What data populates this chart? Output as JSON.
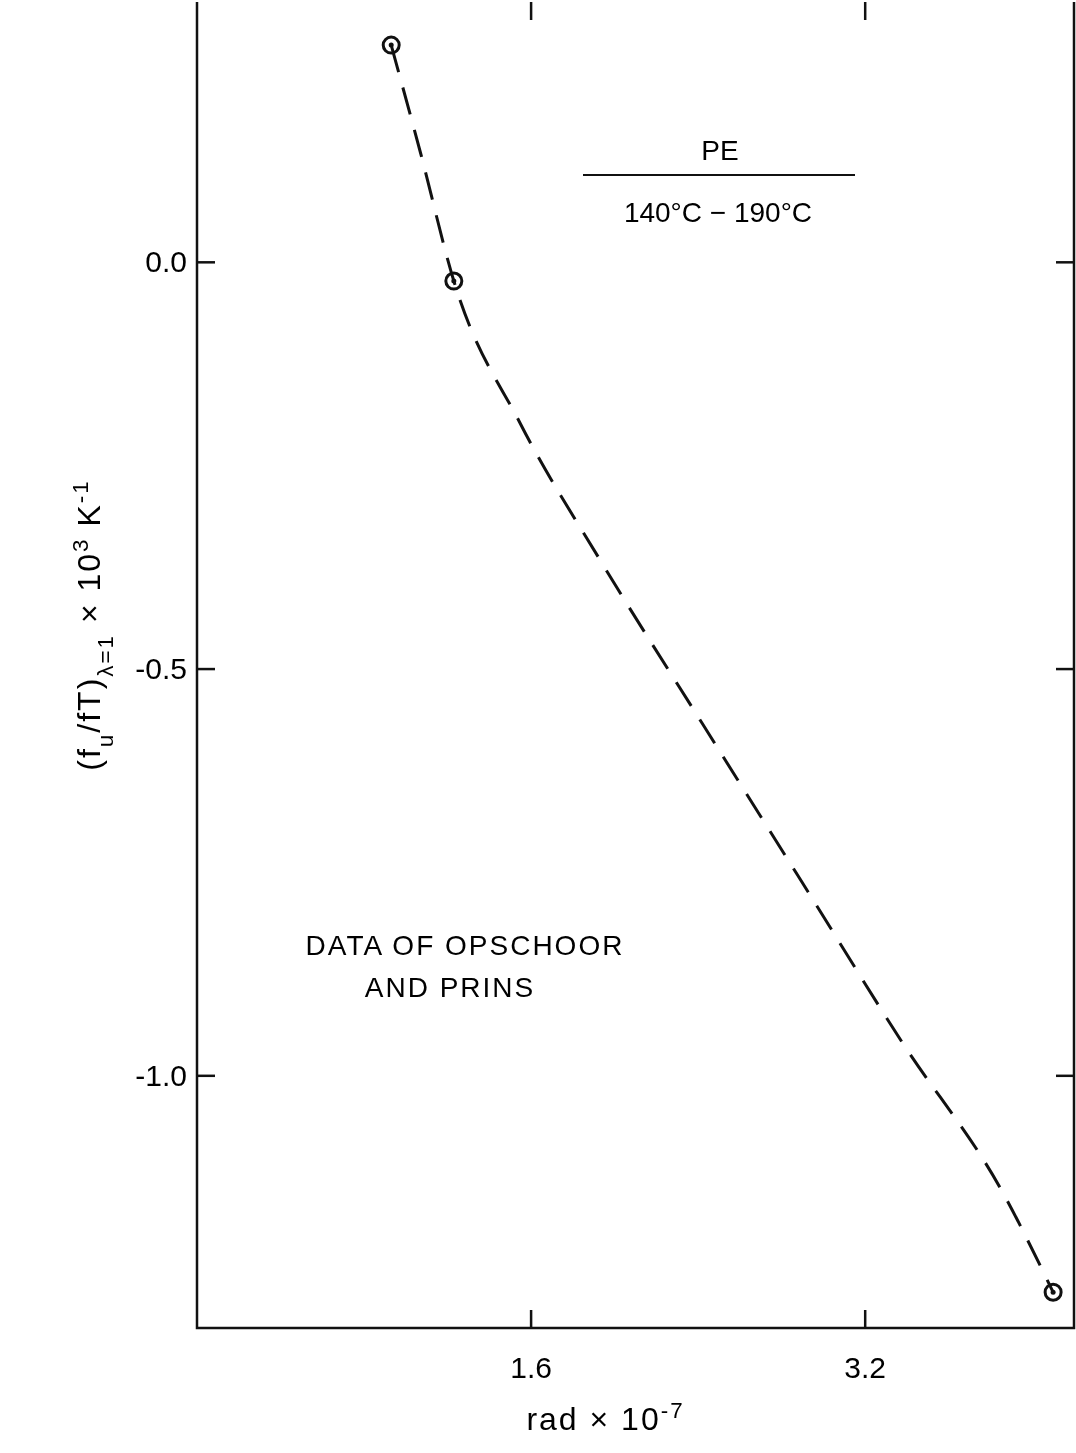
{
  "chart_data": {
    "type": "scatter",
    "xlabel": "rad × 10$^{-7}$",
    "ylabel": "(f$_{u}$/fT)$_{λ=1}$ × 10$^{3}$ K$^{-1}$",
    "xlim": [
      0,
      4.2
    ],
    "xticks": [
      1.6,
      3.2
    ],
    "ylim": [
      -1.31,
      0.32
    ],
    "yticks": [
      {
        "value": 0,
        "label": "0.0"
      },
      {
        "value": -0.5,
        "label": "-0.5"
      },
      {
        "value": -1,
        "label": "-1.0"
      }
    ],
    "annotations": [
      "PE",
      "140°C − 190°C",
      "DATA OF OPSCHOOR AND PRINS"
    ],
    "series": [
      {
        "color": "#111111",
        "marker": "circle",
        "x": [
          0.93,
          1.23,
          4.1
        ],
        "values": [
          0.267,
          -0.023,
          -1.266
        ]
      },
      {
        "type": "line",
        "color": "#111111",
        "line_style": "dashed",
        "x": [
          0.93,
          1.07,
          1.23,
          1.55,
          1.94,
          2.42,
          2.9,
          3.38,
          3.86,
          4.1
        ],
        "values": [
          0.267,
          0.135,
          -0.023,
          -0.199,
          -0.37,
          -0.567,
          -0.763,
          -0.96,
          -1.144,
          -1.266
        ]
      }
    ],
    "grid": false
  }
}
